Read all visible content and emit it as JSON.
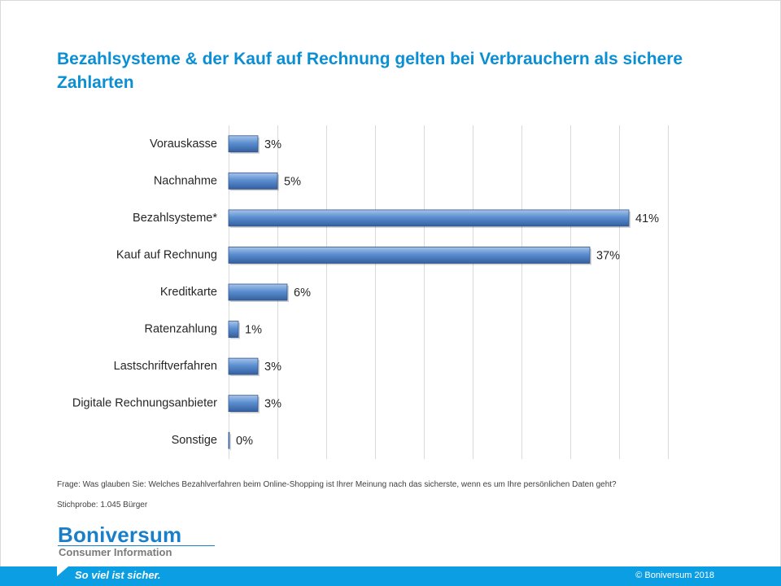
{
  "header": {
    "title": "Bezahlsysteme & der Kauf auf Rechnung gelten bei Verbrauchern als sichere Zahlarten"
  },
  "chart_data": {
    "type": "bar",
    "orientation": "horizontal",
    "categories": [
      "Vorauskasse",
      "Nachnahme",
      "Bezahlsysteme*",
      "Kauf auf Rechnung",
      "Kreditkarte",
      "Ratenzahlung",
      "Lastschriftverfahren",
      "Digitale Rechnungsanbieter",
      "Sonstige"
    ],
    "values": [
      3,
      5,
      41,
      37,
      6,
      1,
      3,
      3,
      0
    ],
    "value_labels": [
      "3%",
      "5%",
      "41%",
      "37%",
      "6%",
      "1%",
      "3%",
      "3%",
      "0%"
    ],
    "xlim": [
      0,
      45
    ],
    "grid": true,
    "bar_color": "#4f81bd"
  },
  "footnotes": {
    "question": "Frage: Was glauben Sie: Welches Bezahlverfahren beim Online-Shopping ist Ihrer Meinung nach das sicherste, wenn es um Ihre persönlichen Daten geht?",
    "sample": "Stichprobe: 1.045 Bürger"
  },
  "logo": {
    "name": "Boniversum",
    "subtitle": "Consumer Information"
  },
  "footer": {
    "slogan": "So viel ist sicher.",
    "copyright": "© Boniversum 2018"
  }
}
